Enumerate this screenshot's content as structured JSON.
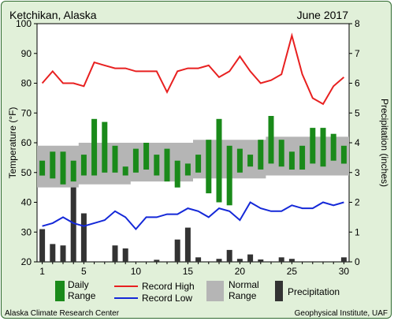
{
  "header": {
    "location": "Ketchikan, Alaska",
    "period": "June 2017"
  },
  "footer": {
    "left": "Alaska Climate Research Center",
    "right": "Geophysical Institute, UAF"
  },
  "chart_data": {
    "type": "bar",
    "ylabel": "Temperature (°F)",
    "y2label": "Precipitation (inches)",
    "ylim": [
      20,
      100
    ],
    "y2lim": [
      0,
      8
    ],
    "yticks": [
      20,
      30,
      40,
      50,
      60,
      70,
      80,
      90,
      100
    ],
    "y2ticks": [
      0,
      1,
      2,
      3,
      4,
      5,
      6,
      7,
      8
    ],
    "xlim": [
      0.5,
      30.5
    ],
    "xticks": [
      1,
      5,
      10,
      15,
      20,
      25,
      30
    ],
    "grid": false,
    "legend_position": "bottom",
    "days": [
      1,
      2,
      3,
      4,
      5,
      6,
      7,
      8,
      9,
      10,
      11,
      12,
      13,
      14,
      15,
      16,
      17,
      18,
      19,
      20,
      21,
      22,
      23,
      24,
      25,
      26,
      27,
      28,
      29,
      30
    ],
    "daily_range": {
      "name": "Daily Range",
      "color": "#1a8a1a",
      "high": [
        54,
        57,
        57,
        54,
        56,
        68,
        67,
        59,
        52,
        58,
        60,
        56,
        58,
        54,
        53,
        56,
        61,
        68,
        59,
        58,
        56,
        61,
        69,
        61,
        57,
        59,
        65,
        65,
        63,
        59
      ],
      "low": [
        49,
        48,
        46,
        47,
        49,
        49,
        50,
        50,
        49,
        50,
        51,
        49,
        47,
        45,
        49,
        50,
        43,
        40,
        39,
        50,
        52,
        51,
        53,
        52,
        51,
        51,
        53,
        52,
        54,
        53
      ]
    },
    "record_high": {
      "name": "Record High",
      "color": "#e82020",
      "values": [
        80,
        84,
        80,
        80,
        79,
        87,
        86,
        85,
        85,
        84,
        84,
        84,
        77,
        84,
        85,
        85,
        86,
        82,
        84,
        89,
        84,
        80,
        81,
        83,
        96,
        83,
        75,
        73,
        79,
        82
      ]
    },
    "record_low": {
      "name": "Record Low",
      "color": "#1428d8",
      "values": [
        32,
        33,
        35,
        33,
        32,
        33,
        34,
        37,
        35,
        31,
        35,
        35,
        36,
        36,
        38,
        37,
        35,
        38,
        37,
        34,
        40,
        38,
        37,
        37,
        39,
        38,
        38,
        40,
        39,
        40
      ]
    },
    "normal_range": {
      "name": "Normal Range",
      "color": "#b5b5b5",
      "high": [
        59,
        59,
        59,
        59,
        60,
        60,
        60,
        60,
        60,
        60,
        60,
        60,
        60,
        60,
        60,
        61,
        61,
        61,
        61,
        61,
        61,
        61,
        62,
        62,
        62,
        62,
        62,
        62,
        62,
        62
      ],
      "low": [
        45,
        45,
        45,
        45,
        46,
        46,
        46,
        46,
        46,
        47,
        47,
        47,
        47,
        47,
        47,
        48,
        48,
        48,
        48,
        48,
        48,
        48,
        49,
        49,
        49,
        49,
        49,
        49,
        49,
        49
      ]
    },
    "precipitation": {
      "name": "Precipitation",
      "color": "#333333",
      "values": [
        1.1,
        0.6,
        0.55,
        2.5,
        1.63,
        0,
        0,
        0.55,
        0.45,
        0,
        0,
        0.07,
        0,
        0.75,
        1.15,
        0.15,
        0,
        0.1,
        0.4,
        0.1,
        0.25,
        0.08,
        0,
        0.15,
        0.1,
        0,
        0,
        0,
        0,
        0.15
      ]
    }
  }
}
